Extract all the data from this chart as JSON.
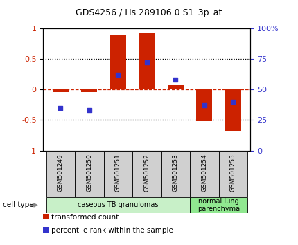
{
  "title": "GDS4256 / Hs.289106.0.S1_3p_at",
  "samples": [
    "GSM501249",
    "GSM501250",
    "GSM501251",
    "GSM501252",
    "GSM501253",
    "GSM501254",
    "GSM501255"
  ],
  "transformed_count": [
    -0.04,
    -0.04,
    0.9,
    0.92,
    0.07,
    -0.52,
    -0.68
  ],
  "percentile_rank": [
    0.35,
    0.33,
    0.62,
    0.72,
    0.58,
    0.37,
    0.4
  ],
  "cell_types": [
    {
      "label": "caseous TB granulomas",
      "samples": [
        0,
        1,
        2,
        3,
        4
      ],
      "color": "#c8f0c8"
    },
    {
      "label": "normal lung\nparenchyma",
      "samples": [
        5,
        6
      ],
      "color": "#90e890"
    }
  ],
  "bar_color": "#cc2200",
  "dot_color": "#3333cc",
  "bar_width": 0.55,
  "ylim": [
    -1,
    1
  ],
  "yticks_left": [
    -1,
    -0.5,
    0,
    0.5,
    1
  ],
  "ytick_labels_left": [
    "-1",
    "-0.5",
    "0",
    "0.5",
    "1"
  ],
  "yticks_right": [
    0,
    0.25,
    0.5,
    0.75,
    1.0
  ],
  "ytick_labels_right": [
    "0",
    "25",
    "50",
    "75",
    "100%"
  ],
  "background_color": "#ffffff",
  "label_box_color": "#d0d0d0",
  "legend_red_label": "transformed count",
  "legend_blue_label": "percentile rank within the sample",
  "cell_type_label": "cell type"
}
